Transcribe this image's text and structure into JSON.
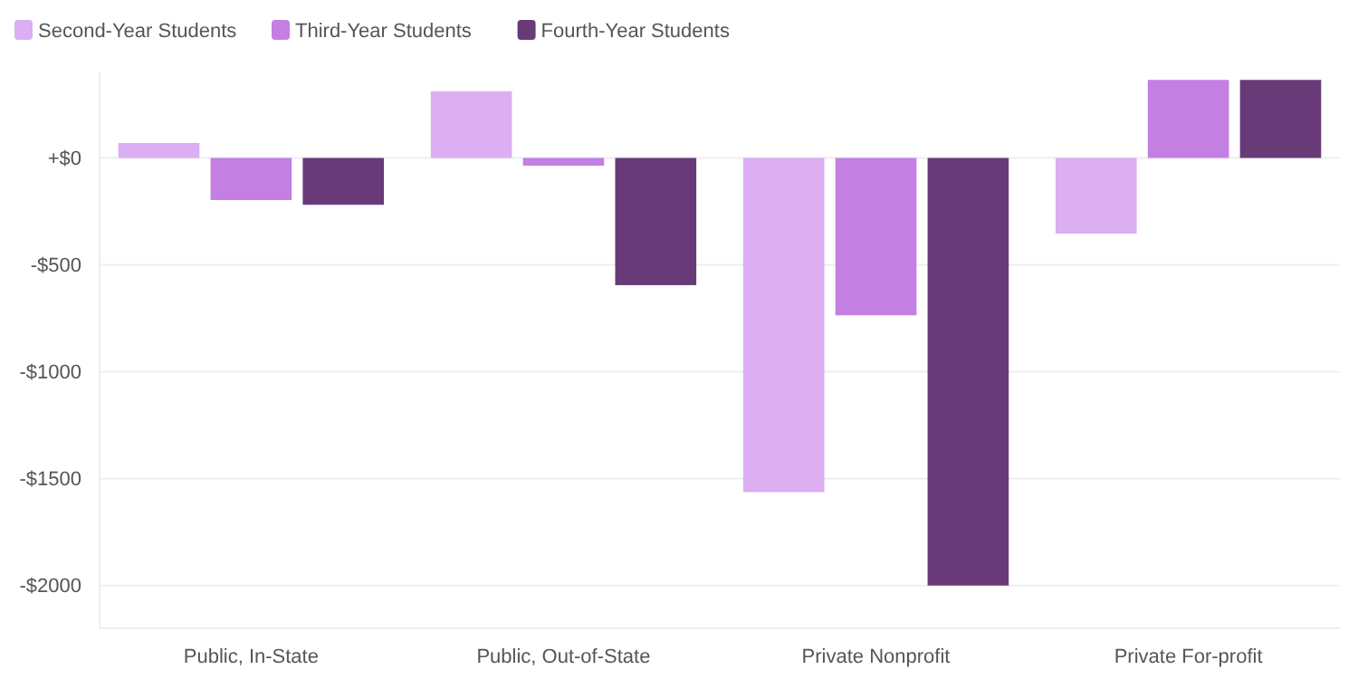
{
  "chart_data": {
    "type": "bar",
    "categories": [
      "Public, In-State",
      "Public, Out-of-State",
      "Private Nonprofit",
      "Private For-profit"
    ],
    "series": [
      {
        "name": "Second-Year Students",
        "color": "#dcaef2",
        "values": [
          70,
          312,
          -1563,
          -354
        ]
      },
      {
        "name": "Third-Year Students",
        "color": "#c47fe3",
        "values": [
          -197,
          -36,
          -736,
          365
        ]
      },
      {
        "name": "Fourth-Year Students",
        "color": "#683a78",
        "values": [
          -219,
          -595,
          -2000,
          365
        ]
      }
    ],
    "ylim": [
      -2200,
      400
    ],
    "yticks": [
      {
        "value": 0,
        "label": "+$0"
      },
      {
        "value": -500,
        "label": "-$500"
      },
      {
        "value": -1000,
        "label": "-$1000"
      },
      {
        "value": -1500,
        "label": "-$1500"
      },
      {
        "value": -2000,
        "label": "-$2000"
      }
    ],
    "grid": "y",
    "legend": "top left"
  }
}
